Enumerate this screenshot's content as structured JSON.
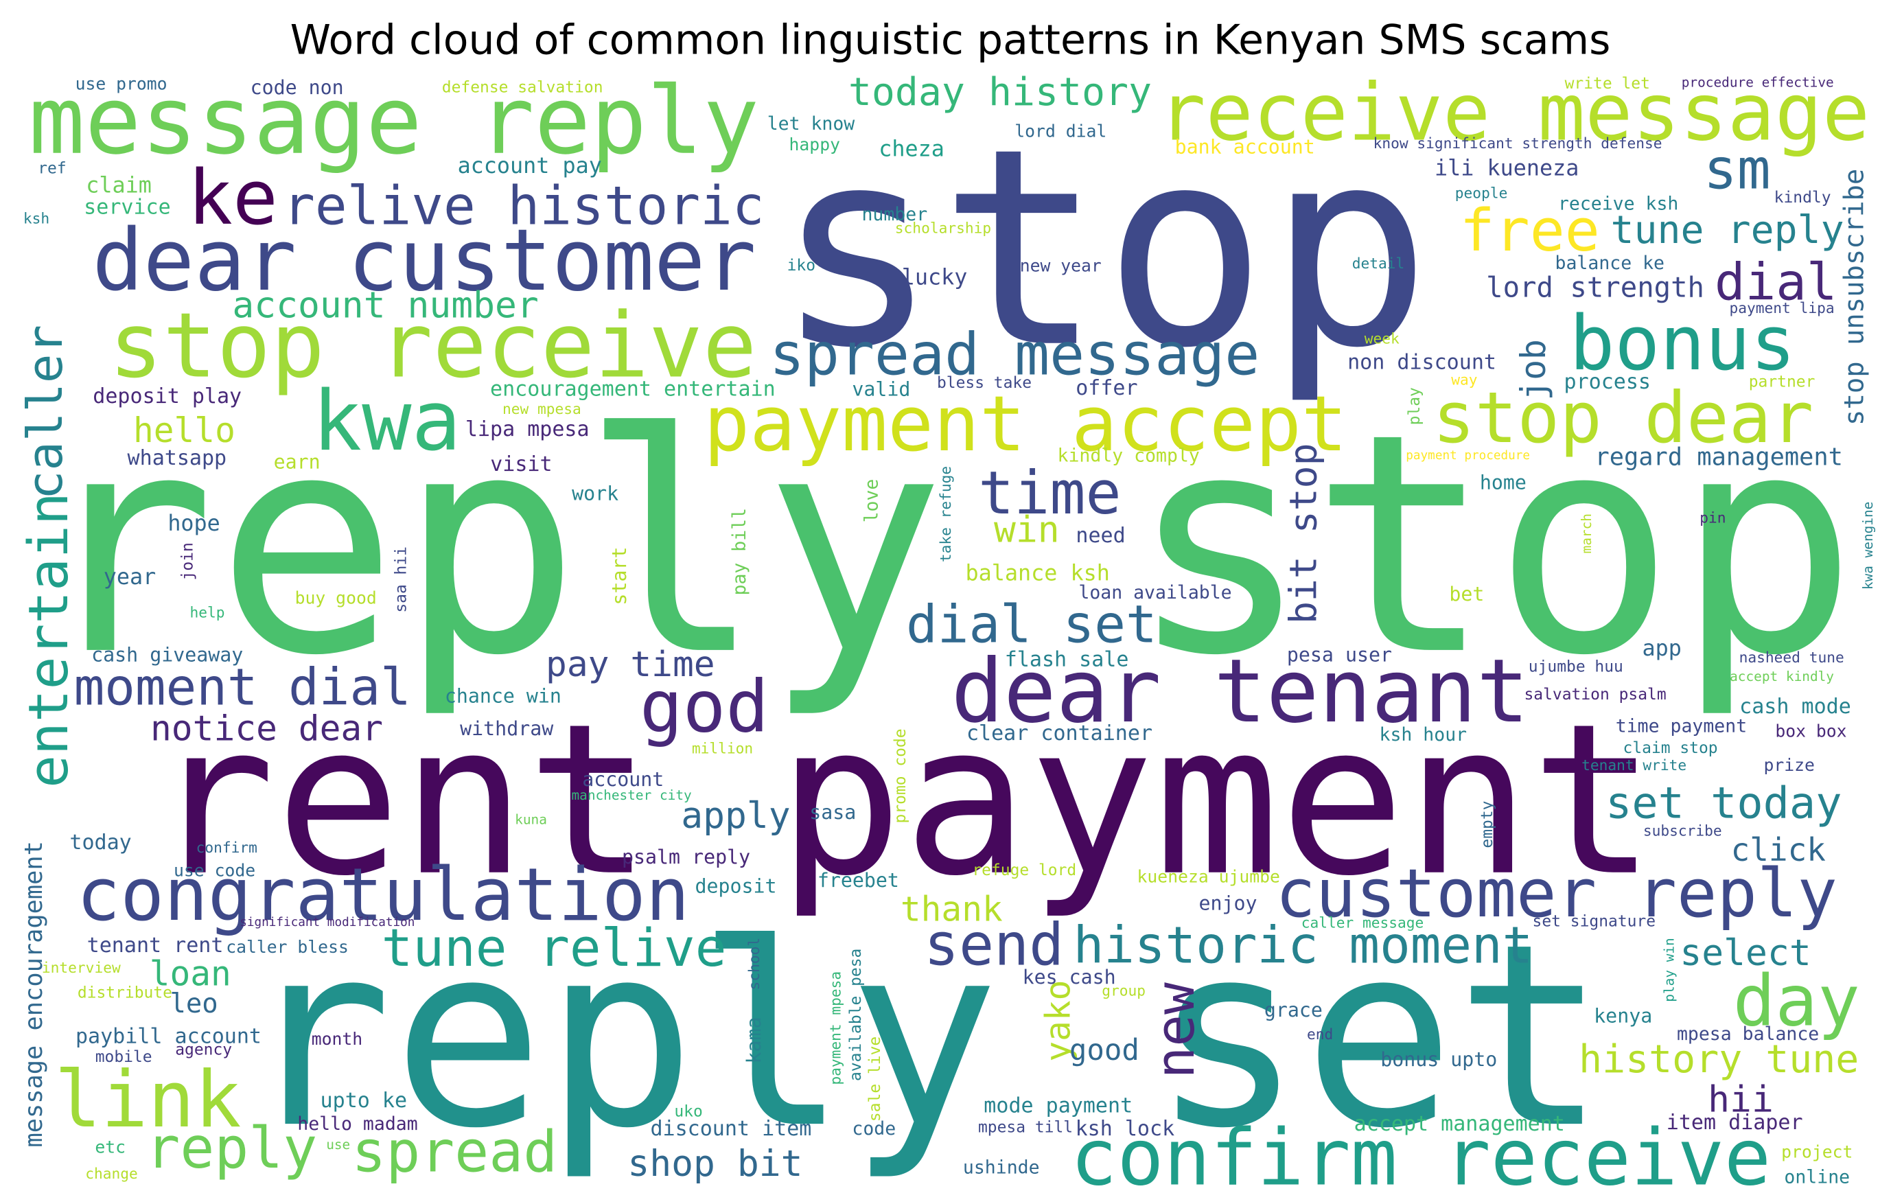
{
  "chart_data": {
    "type": "wordcloud",
    "title": "Word cloud of common linguistic patterns in Kenyan SMS scams",
    "words": [
      "stop",
      "reply stop",
      "rent payment",
      "reply set",
      "message reply",
      "receive message",
      "dear customer",
      "stop receive",
      "kwa",
      "ke",
      "relive historic",
      "sm",
      "free",
      "tune reply",
      "today history",
      "spread message",
      "bonus",
      "dial",
      "lord strength",
      "payment accept",
      "stop dear",
      "account number",
      "caller",
      "entertain",
      "message encouragement",
      "time",
      "win",
      "god",
      "dear tenant",
      "dial set",
      "moment dial",
      "pay time",
      "apply",
      "congratulation",
      "customer reply",
      "set today",
      "link",
      "reply",
      "spread",
      "tune relive",
      "send",
      "historic moment",
      "confirm receive",
      "day",
      "new",
      "yako",
      "bit stop",
      "job",
      "stop unsubscribe",
      "select",
      "history tune",
      "hii",
      "click",
      "loan",
      "leo",
      "hello",
      "notice dear",
      "shop bit",
      "good",
      "thank",
      "use promo",
      "code non",
      "defense salvation",
      "write let",
      "procedure effective",
      "let know",
      "lord dial",
      "happy",
      "cheza",
      "bank account",
      "know significant strength defense",
      "ili kueneza",
      "account pay",
      "ref",
      "claim",
      "service",
      "ksh",
      "people",
      "kindly",
      "receive ksh",
      "number",
      "scholarship",
      "iko",
      "new year",
      "detail",
      "balance ke",
      "lucky",
      "payment lipa",
      "week",
      "non discount",
      "process",
      "partner",
      "deposit play",
      "encouragement entertain",
      "valid",
      "bless take",
      "offer",
      "way",
      "play",
      "new mpesa",
      "lipa mpesa",
      "whatsapp",
      "earn",
      "visit",
      "kindly comply",
      "payment procedure",
      "regard management",
      "home",
      "work",
      "love",
      "take refuge",
      "kwa wengine",
      "pin",
      "hope",
      "need",
      "pay bill",
      "march",
      "saa hii",
      "join",
      "year",
      "balance ksh",
      "start",
      "help",
      "buy good",
      "loan available",
      "bet",
      "nasheed tune",
      "app",
      "cash giveaway",
      "flash sale",
      "pesa user",
      "ujumbe huu",
      "accept kindly",
      "chance win",
      "salvation psalm",
      "cash mode",
      "withdraw",
      "clear container",
      "time payment",
      "box box",
      "million",
      "claim stop",
      "ksh hour",
      "promo code",
      "tenant write",
      "prize",
      "account",
      "manchester city",
      "sasa",
      "kuna",
      "empty",
      "subscribe",
      "today",
      "confirm",
      "psalm reply",
      "use code",
      "freebet",
      "refuge lord",
      "kueneza ujumbe",
      "deposit",
      "enjoy",
      "significant modification",
      "caller message",
      "set signature",
      "tenant rent",
      "caller bless",
      "interview",
      "distribute",
      "school",
      "kama",
      "play win",
      "kes cash",
      "grace",
      "group",
      "kenya",
      "end",
      "mpesa balance",
      "paybill account",
      "month",
      "agency",
      "mobile",
      "payment mpesa",
      "available pesa",
      "sale live",
      "bonus upto",
      "upto ke",
      "mode payment",
      "ksh lock",
      "mpesa till",
      "accept management",
      "item diaper",
      "hello madam",
      "discount item",
      "code",
      "uko",
      "use",
      "etc",
      "project",
      "change",
      "ushinde",
      "online"
    ]
  }
}
